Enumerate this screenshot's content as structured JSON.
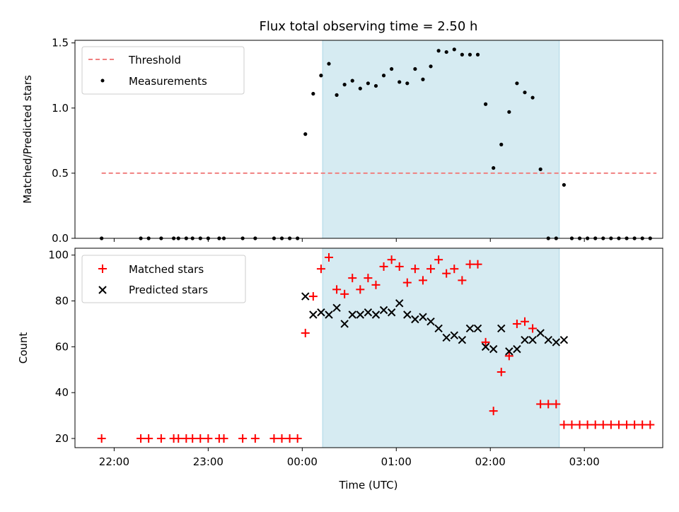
{
  "figure_title": "Flux total observing time = 2.50 h",
  "colors": {
    "threshold": "#f08080",
    "measurement": "#000000",
    "matched": "#ff0000",
    "predicted": "#000000",
    "shade": "#add8e6"
  },
  "chart_data": [
    {
      "type": "scatter",
      "title": "Flux total observing time = 2.50 h",
      "xlabel": "",
      "ylabel": "Matched/Predicted stars",
      "xlim": [
        "21:35",
        "03:50"
      ],
      "ylim": [
        0,
        1.52
      ],
      "yticks": [
        "0.0",
        "0.5",
        "1.0",
        "1.5"
      ],
      "shaded_region": [
        "00:13",
        "02:44"
      ],
      "legend_position": "upper-left",
      "legend": [
        "Threshold",
        "Measurements"
      ],
      "threshold": {
        "name": "Threshold",
        "value": 0.5,
        "x_range": [
          "21:52",
          "03:46"
        ]
      },
      "measurements": {
        "name": "Measurements",
        "x": [
          "21:52",
          "22:17",
          "22:22",
          "22:30",
          "22:38",
          "22:41",
          "22:46",
          "22:50",
          "22:55",
          "23:00",
          "23:07",
          "23:10",
          "23:22",
          "23:30",
          "23:42",
          "23:47",
          "23:52",
          "23:57",
          "00:02",
          "00:07",
          "00:12",
          "00:17",
          "00:22",
          "00:27",
          "00:32",
          "00:37",
          "00:42",
          "00:47",
          "00:52",
          "00:57",
          "01:02",
          "01:07",
          "01:12",
          "01:17",
          "01:22",
          "01:27",
          "01:32",
          "01:37",
          "01:42",
          "01:47",
          "01:52",
          "01:57",
          "02:02",
          "02:07",
          "02:12",
          "02:17",
          "02:22",
          "02:27",
          "02:32",
          "02:37",
          "02:42",
          "02:47",
          "02:52",
          "02:57",
          "03:02",
          "03:07",
          "03:12",
          "03:17",
          "03:22",
          "03:27",
          "03:32",
          "03:37",
          "03:42"
        ],
        "y": [
          0,
          0,
          0,
          0,
          0,
          0,
          0,
          0,
          0,
          0,
          0,
          0,
          0,
          0,
          0,
          0,
          0,
          0,
          0.8,
          1.11,
          1.25,
          1.34,
          1.1,
          1.18,
          1.21,
          1.15,
          1.19,
          1.17,
          1.25,
          1.3,
          1.2,
          1.19,
          1.3,
          1.22,
          1.32,
          1.44,
          1.43,
          1.45,
          1.41,
          1.41,
          1.41,
          1.03,
          0.54,
          0.72,
          0.97,
          1.19,
          1.12,
          1.08,
          0.53,
          0,
          0,
          0.41,
          0,
          0,
          0,
          0,
          0,
          0,
          0,
          0,
          0,
          0,
          0
        ]
      }
    },
    {
      "type": "scatter",
      "title": "",
      "xlabel": "Time (UTC)",
      "ylabel": "Count",
      "xlim": [
        "21:35",
        "03:50"
      ],
      "ylim": [
        16,
        103
      ],
      "yticks": [
        "20",
        "40",
        "60",
        "80",
        "100"
      ],
      "xticks": [
        "22:00",
        "23:00",
        "00:00",
        "01:00",
        "02:00",
        "03:00"
      ],
      "shaded_region": [
        "00:13",
        "02:44"
      ],
      "legend_position": "upper-left",
      "legend": [
        "Matched stars",
        "Predicted stars"
      ],
      "series": [
        {
          "name": "Matched stars",
          "x": [
            "21:52",
            "22:17",
            "22:22",
            "22:30",
            "22:38",
            "22:41",
            "22:46",
            "22:50",
            "22:55",
            "23:00",
            "23:07",
            "23:10",
            "23:22",
            "23:30",
            "23:42",
            "23:47",
            "23:52",
            "23:57",
            "00:02",
            "00:07",
            "00:12",
            "00:17",
            "00:22",
            "00:27",
            "00:32",
            "00:37",
            "00:42",
            "00:47",
            "00:52",
            "00:57",
            "01:02",
            "01:07",
            "01:12",
            "01:17",
            "01:22",
            "01:27",
            "01:32",
            "01:37",
            "01:42",
            "01:47",
            "01:52",
            "01:57",
            "02:02",
            "02:07",
            "02:12",
            "02:17",
            "02:22",
            "02:27",
            "02:32",
            "02:37",
            "02:42",
            "02:47",
            "02:52",
            "02:57",
            "03:02",
            "03:07",
            "03:12",
            "03:17",
            "03:22",
            "03:27",
            "03:32",
            "03:37",
            "03:42"
          ],
          "y": [
            20,
            20,
            20,
            20,
            20,
            20,
            20,
            20,
            20,
            20,
            20,
            20,
            20,
            20,
            20,
            20,
            20,
            20,
            66,
            82,
            94,
            99,
            85,
            83,
            90,
            85,
            90,
            87,
            95,
            98,
            95,
            88,
            94,
            89,
            94,
            98,
            92,
            94,
            89,
            96,
            96,
            62,
            32,
            49,
            56,
            70,
            71,
            68,
            35,
            35,
            35,
            26,
            26,
            26,
            26,
            26,
            26,
            26,
            26,
            26,
            26,
            26,
            26
          ]
        },
        {
          "name": "Predicted stars",
          "x": [
            "00:02",
            "00:07",
            "00:12",
            "00:17",
            "00:22",
            "00:27",
            "00:32",
            "00:37",
            "00:42",
            "00:47",
            "00:52",
            "00:57",
            "01:02",
            "01:07",
            "01:12",
            "01:17",
            "01:22",
            "01:27",
            "01:32",
            "01:37",
            "01:42",
            "01:47",
            "01:52",
            "01:57",
            "02:02",
            "02:07",
            "02:12",
            "02:17",
            "02:22",
            "02:27",
            "02:32",
            "02:37",
            "02:42",
            "02:47"
          ],
          "y": [
            82,
            74,
            75,
            74,
            77,
            70,
            74,
            74,
            75,
            74,
            76,
            75,
            79,
            74,
            72,
            73,
            71,
            68,
            64,
            65,
            63,
            68,
            68,
            60,
            59,
            68,
            58,
            59,
            63,
            63,
            66,
            63,
            62,
            63
          ]
        }
      ]
    }
  ]
}
